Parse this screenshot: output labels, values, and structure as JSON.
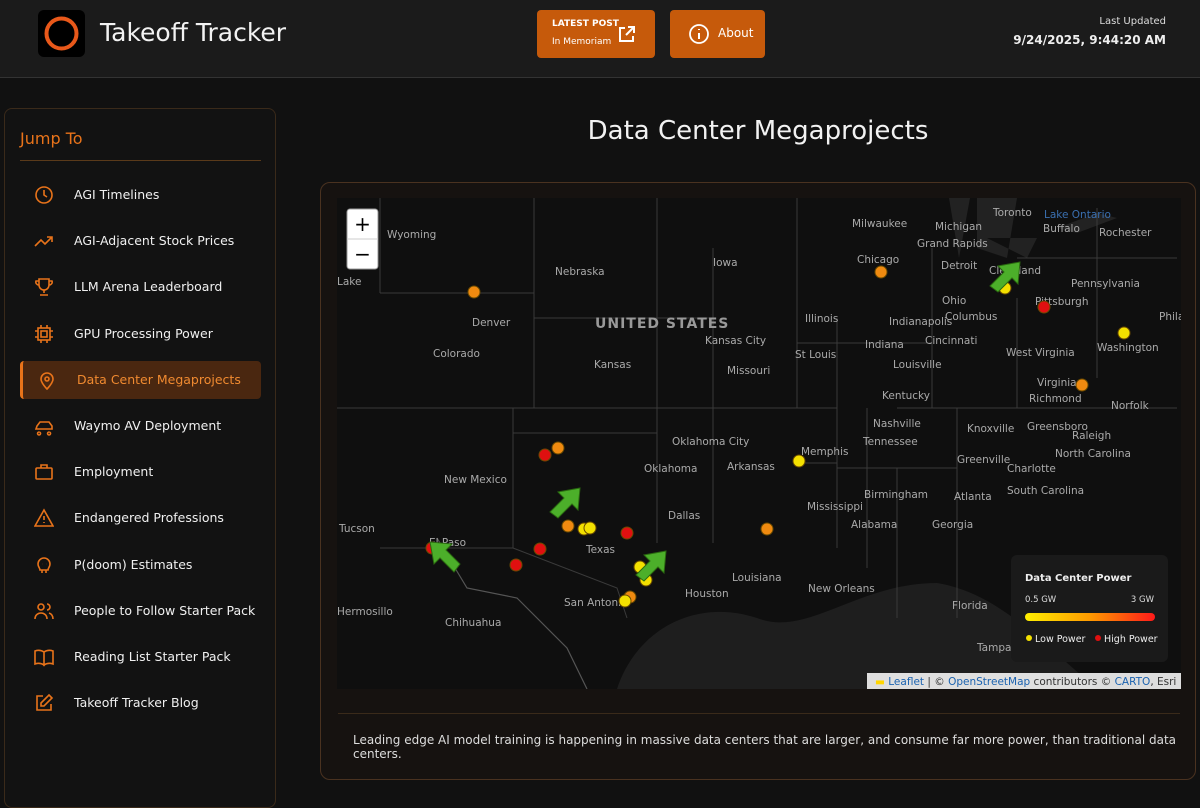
{
  "header": {
    "title": "Takeoff Tracker",
    "latest_post": {
      "label": "LATEST POST",
      "title": "In Memoriam"
    },
    "about": "About",
    "last_updated": {
      "label": "Last Updated",
      "value": "9/24/2025, 9:44:20 AM"
    }
  },
  "sidebar": {
    "heading": "Jump To",
    "items": [
      "AGI Timelines",
      "AGI-Adjacent Stock Prices",
      "LLM Arena Leaderboard",
      "GPU Processing Power",
      "Data Center Megaprojects",
      "Waymo AV Deployment",
      "Employment",
      "Endangered Professions",
      "P(doom) Estimates",
      "People to Follow Starter Pack",
      "Reading List Starter Pack",
      "Takeoff Tracker Blog"
    ]
  },
  "main": {
    "title": "Data Center Megaprojects",
    "caption": "Leading edge AI model training is happening in massive data centers that are larger, and consume far more power, than traditional data centers.",
    "map": {
      "zoom_in": "+",
      "zoom_out": "−",
      "labels": [
        "Wyoming",
        "Nebraska",
        "Iowa",
        "Milwaukee",
        "Michigan",
        "Grand Rapids",
        "Toronto",
        "Lake Ontario",
        "Buffalo",
        "Rochester",
        "Chicago",
        "Detroit",
        "Cleveland",
        "Pennsylvania",
        "Pittsburgh",
        "Ohio",
        "Columbus",
        "Denver",
        "UNITED STATES",
        "Illinois",
        "Indianapolis",
        "Indiana",
        "Cincinnati",
        "West Virginia",
        "Washington",
        "Colorado",
        "Kansas",
        "Kansas City",
        "Missouri",
        "St Louis",
        "Louisville",
        "Kentucky",
        "Virginia",
        "Richmond",
        "Norfolk",
        "Nashville",
        "Tennessee",
        "Knoxville",
        "Greensboro",
        "Raleigh",
        "North Carolina",
        "Oklahoma City",
        "Oklahoma",
        "Memphis",
        "Arkansas",
        "Greenville",
        "Charlotte",
        "New Mexico",
        "South Carolina",
        "Birmingham",
        "Atlanta",
        "Mississippi",
        "Alabama",
        "Georgia",
        "Dallas",
        "Tucson",
        "El Paso",
        "Texas",
        "Louisiana",
        "Houston",
        "New Orleans",
        "San Antonio",
        "Hermosillo",
        "Chihuahua",
        "Florida",
        "Tampa",
        "Lake",
        "Philadel"
      ],
      "legend": {
        "title": "Data Center Power",
        "min": "0.5 GW",
        "max": "3 GW",
        "low": "Low Power",
        "high": "High Power"
      },
      "attribution": {
        "leaflet": "Leaflet",
        "osm": "OpenStreetMap",
        "contributors": "contributors ©",
        "carto": "CARTO",
        "esri": ", Esri"
      }
    }
  }
}
